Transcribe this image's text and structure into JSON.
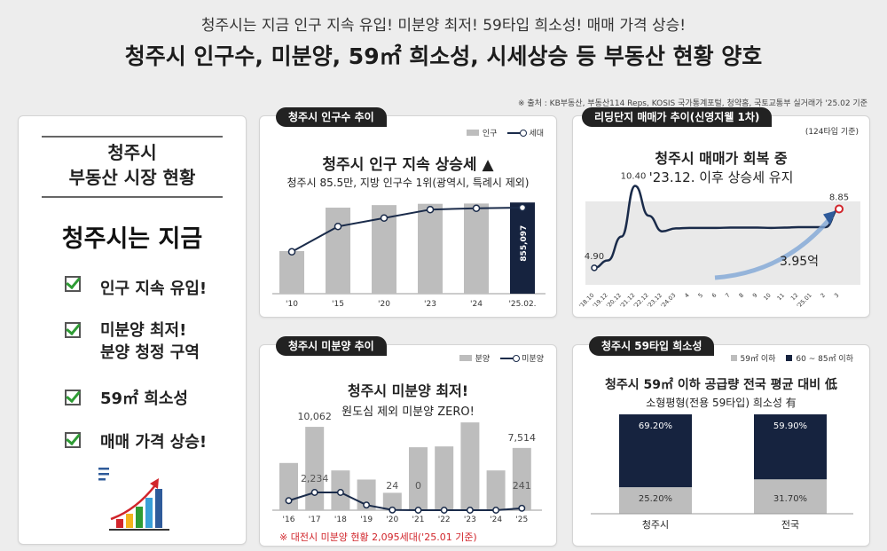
{
  "header": {
    "subtitle": "청주시는 지금 인구 지속 유입! 미분양 최저! 59타입 희소성! 매매 가격 상승!",
    "title": "청주시 인구수, 미분양, 59㎡ 희소성, 시세상승 등 부동산 현황 양호",
    "source": "※ 출처 : KB부동산, 부동산114 Reps, KOSIS 국가통계포털, 청약홈, 국토교통부 실거래가 '25.02 기준"
  },
  "left_panel": {
    "heading_line1": "청주시",
    "heading_line2": "부동산 시장 현황",
    "big": "청주시는 지금",
    "items": [
      "인구 지속 유입!",
      "미분양 최저!",
      "분양 청정 구역",
      "59㎡ 희소성",
      "매매 가격 상승!"
    ]
  },
  "colors": {
    "bar_gray": "#bdbdbd",
    "bar_navy": "#16233f",
    "line_navy": "#1a2b4a",
    "red": "#d1252b",
    "accent_blue": "#2f5b9a"
  },
  "chart_data": [
    {
      "id": "population",
      "type": "bar",
      "tag": "청주시 인구수 추이",
      "title": "청주시 인구 지속 상승세 ▲",
      "subtitle": "청주시 85.5만, 지방 인구수 1위(광역시, 특례시 제외)",
      "legend": [
        "인구",
        "세대"
      ],
      "categories": [
        "'10",
        "'15",
        "'20",
        "'23",
        "'24",
        "'25.02."
      ],
      "values": [
        666000,
        835000,
        845000,
        850000,
        851000,
        855097
      ],
      "line_values": [
        283000,
        322000,
        335000,
        348000,
        350000,
        351000
      ],
      "highlight_label": "855,097",
      "highlight_index": 5,
      "ylim": [
        500000,
        880000
      ]
    },
    {
      "id": "price",
      "type": "line",
      "tag": "리딩단지 매매가 추이(신영지웰 1차)",
      "note": "(124타입 기준)",
      "title": "청주시 매매가 회복 중",
      "subtitle": "'23.12. 이후 상승세 유지",
      "x": [
        "'18.10",
        "'19.12",
        "'20.12",
        "'21.12",
        "'22.12",
        "'23.12",
        "'24.03",
        "4",
        "5",
        "6",
        "7",
        "8",
        "9",
        "10",
        "11",
        "12",
        "'25.01",
        "2",
        "3"
      ],
      "y": [
        4.9,
        5.4,
        7.0,
        10.4,
        8.4,
        7.35,
        7.55,
        7.58,
        7.58,
        7.58,
        7.6,
        7.6,
        7.6,
        7.58,
        7.6,
        7.63,
        7.63,
        7.63,
        8.85
      ],
      "labels": {
        "start": "4.90",
        "peak": "10.40",
        "end": "8.85",
        "rise": "3.95억"
      },
      "ylim": [
        4,
        11.5
      ]
    },
    {
      "id": "unsold",
      "type": "bar",
      "tag": "청주시 미분양 추이",
      "title": "청주시 미분양 최저!",
      "subtitle": "원도심 제외 미분양 ZERO!",
      "legend": [
        "분양",
        "미분양"
      ],
      "categories": [
        "'16",
        "'17",
        "'18",
        "'19",
        "'20",
        "'21",
        "'22",
        "'23",
        "'24",
        "'25"
      ],
      "values": [
        5700,
        10062,
        4800,
        3700,
        2100,
        7600,
        7700,
        10600,
        4800,
        7514
      ],
      "line_values": [
        1200,
        2234,
        2234,
        650,
        24,
        0,
        0,
        0,
        0,
        241
      ],
      "bar_labels": {
        "1": "10,062",
        "9": "7,514"
      },
      "line_labels": {
        "1": "2,234",
        "4": "24",
        "5": "0",
        "9": "241"
      },
      "footnote": "※ 대전시 미분양 현황 2,095세대('25.01 기준)",
      "ylim": [
        0,
        12000
      ]
    },
    {
      "id": "type59",
      "type": "bar",
      "stacked": true,
      "tag": "청주시 59타입 희소성",
      "legend": [
        "59㎡ 이하",
        "60 ~ 85㎡ 이하"
      ],
      "title": "청주시 59㎡ 이하 공급량 전국 평균 대비 低",
      "subtitle": "소형평형(전용 59타입) 희소성 有",
      "categories": [
        "청주시",
        "전국"
      ],
      "series": [
        {
          "name": "59㎡ 이하",
          "values": [
            25.2,
            31.7
          ],
          "labels": [
            "25.20%",
            "31.70%"
          ]
        },
        {
          "name": "60 ~ 85㎡ 이하",
          "values": [
            69.2,
            59.9
          ],
          "labels": [
            "69.20%",
            "59.90%"
          ]
        }
      ]
    }
  ]
}
